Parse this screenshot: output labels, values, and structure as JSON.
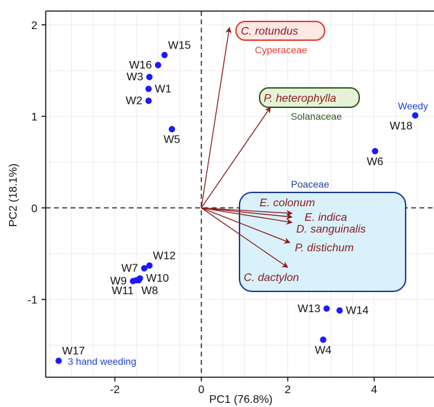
{
  "chart_data": {
    "type": "scatter",
    "subtype": "pca-biplot",
    "xlabel": "PC1 (76.8%)",
    "ylabel": "PC2 (18.1%)",
    "xlim": [
      -3.6,
      5.4
    ],
    "ylim": [
      -1.85,
      2.15
    ],
    "xticks": [
      -2,
      0,
      2,
      4
    ],
    "yticks": [
      -1,
      0,
      1,
      2
    ],
    "xtick_labels": [
      "-2",
      "0",
      "2",
      "4"
    ],
    "ytick_labels": [
      "-1",
      "0",
      "1",
      "2"
    ],
    "grid": true,
    "zero_lines": "dashed",
    "point_color": "#1a1aff",
    "arrow_color": "#8b1a1a",
    "points": [
      {
        "label": "W15",
        "x": -0.85,
        "y": 1.67,
        "label_pos": "upper-right"
      },
      {
        "label": "W16",
        "x": -1.0,
        "y": 1.56,
        "label_pos": "left"
      },
      {
        "label": "W3",
        "x": -1.2,
        "y": 1.43,
        "label_pos": "left"
      },
      {
        "label": "W1",
        "x": -1.22,
        "y": 1.3,
        "label_pos": "right"
      },
      {
        "label": "W2",
        "x": -1.22,
        "y": 1.17,
        "label_pos": "left"
      },
      {
        "label": "W5",
        "x": -0.68,
        "y": 0.86,
        "label_pos": "below"
      },
      {
        "label": "W18",
        "x": 4.95,
        "y": 1.01,
        "label_pos": "below-left"
      },
      {
        "label": "W6",
        "x": 4.02,
        "y": 0.62,
        "label_pos": "below"
      },
      {
        "label": "W12",
        "x": -1.2,
        "y": -0.63,
        "label_pos": "upper-right"
      },
      {
        "label": "W7",
        "x": -1.32,
        "y": -0.66,
        "label_pos": "left"
      },
      {
        "label": "W10",
        "x": -1.42,
        "y": -0.77,
        "label_pos": "right"
      },
      {
        "label": "W9",
        "x": -1.58,
        "y": -0.8,
        "label_pos": "left"
      },
      {
        "label": "W11",
        "x": -1.5,
        "y": -0.79,
        "label_pos": "below-left"
      },
      {
        "label": "W8",
        "x": -1.45,
        "y": -0.79,
        "label_pos": "below-right"
      },
      {
        "label": "W13",
        "x": 2.9,
        "y": -1.1,
        "label_pos": "left"
      },
      {
        "label": "W14",
        "x": 3.2,
        "y": -1.12,
        "label_pos": "right"
      },
      {
        "label": "W4",
        "x": 2.82,
        "y": -1.44,
        "label_pos": "below"
      },
      {
        "label": "W17",
        "x": -3.3,
        "y": -1.67,
        "label_pos": "upper-right"
      }
    ],
    "loadings": [
      {
        "name": "C. rotundus",
        "x": 0.65,
        "y": 1.97
      },
      {
        "name": "P. heterophylla",
        "x": 1.6,
        "y": 1.1
      },
      {
        "name": "E. colonum",
        "x": 2.1,
        "y": -0.06
      },
      {
        "name": "E. indica",
        "x": 2.1,
        "y": -0.1
      },
      {
        "name": "D. sanguinalis",
        "x": 2.1,
        "y": -0.16
      },
      {
        "name": "P. distichum",
        "x": 2.05,
        "y": -0.38
      },
      {
        "name": "C. dactylon",
        "x": 2.0,
        "y": -0.65
      }
    ],
    "annotations": {
      "weedy": "Weedy",
      "hand_weeding": "3 hand weeding"
    },
    "groups": [
      {
        "family": "Cyperaceae",
        "species": [
          "C. rotundus"
        ],
        "color": "#e8392a",
        "fill": "#fde8e4"
      },
      {
        "family": "Solanaceae",
        "species": [
          "P. heterophylla"
        ],
        "color": "#2f5a1e",
        "fill": "#e6f2d8"
      },
      {
        "family": "Poaceae",
        "species": [
          "E. colonum",
          "E. indica",
          "D. sanguinalis",
          "P. distichum",
          "C. dactylon"
        ],
        "color": "#1c3f96",
        "fill": "#d8f1fb"
      }
    ]
  }
}
